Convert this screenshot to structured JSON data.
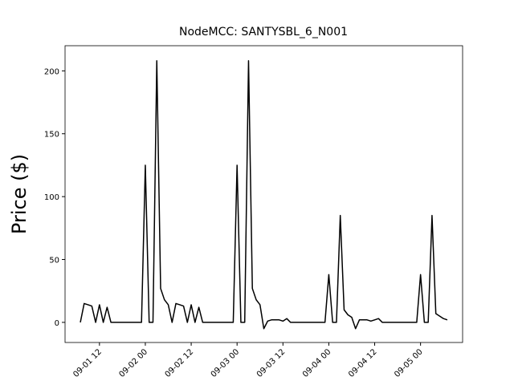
{
  "chart_data": {
    "type": "line",
    "title": "NodeMCC: SANTYSBL_6_N001",
    "y_label": "Price ($)",
    "x": [
      "09-01 07",
      "09-01 08",
      "09-01 09",
      "09-01 10",
      "09-01 11",
      "09-01 12",
      "09-01 13",
      "09-01 14",
      "09-01 15",
      "09-01 16",
      "09-01 17",
      "09-01 18",
      "09-01 19",
      "09-01 20",
      "09-01 21",
      "09-01 22",
      "09-01 23",
      "09-02 00",
      "09-02 01",
      "09-02 02",
      "09-02 03",
      "09-02 04",
      "09-02 05",
      "09-02 06",
      "09-02 07",
      "09-02 08",
      "09-02 09",
      "09-02 10",
      "09-02 11",
      "09-02 12",
      "09-02 13",
      "09-02 14",
      "09-02 15",
      "09-02 16",
      "09-02 17",
      "09-02 18",
      "09-02 19",
      "09-02 20",
      "09-02 21",
      "09-02 22",
      "09-02 23",
      "09-03 00",
      "09-03 01",
      "09-03 02",
      "09-03 03",
      "09-03 04",
      "09-03 05",
      "09-03 06",
      "09-03 07",
      "09-03 08",
      "09-03 09",
      "09-03 10",
      "09-03 11",
      "09-03 12",
      "09-03 13",
      "09-03 14",
      "09-03 15",
      "09-03 16",
      "09-03 17",
      "09-03 18",
      "09-03 19",
      "09-03 20",
      "09-03 21",
      "09-03 22",
      "09-03 23",
      "09-04 00",
      "09-04 01",
      "09-04 02",
      "09-04 03",
      "09-04 04",
      "09-04 05",
      "09-04 06",
      "09-04 07",
      "09-04 08",
      "09-04 09",
      "09-04 10",
      "09-04 11",
      "09-04 12",
      "09-04 13",
      "09-04 14",
      "09-04 15",
      "09-04 16",
      "09-04 17",
      "09-04 18",
      "09-04 19",
      "09-04 20",
      "09-04 21",
      "09-04 22",
      "09-04 23",
      "09-05 00",
      "09-05 01",
      "09-05 02",
      "09-05 03",
      "09-05 04",
      "09-05 05",
      "09-05 06",
      "09-05 07"
    ],
    "series": [
      {
        "color": "#000000",
        "values": [
          0,
          15,
          14,
          13,
          0,
          14,
          0,
          12,
          0,
          0,
          0,
          0,
          0,
          0,
          0,
          0,
          0,
          125,
          0,
          0,
          208,
          27,
          18,
          14,
          0,
          15,
          14,
          13,
          0,
          14,
          0,
          12,
          0,
          0,
          0,
          0,
          0,
          0,
          0,
          0,
          0,
          125,
          0,
          0,
          208,
          27,
          18,
          14,
          -5,
          1,
          2,
          2,
          2,
          1,
          3,
          0,
          0,
          0,
          0,
          0,
          0,
          0,
          0,
          0,
          0,
          38,
          0,
          0,
          85,
          10,
          6,
          4,
          -5,
          2,
          2,
          2,
          1,
          2,
          3,
          0,
          0,
          0,
          0,
          0,
          0,
          0,
          0,
          0,
          0,
          38,
          0,
          0,
          85,
          7,
          5,
          3,
          2
        ]
      }
    ],
    "xlim": [
      "09-01 03",
      "09-05 11"
    ],
    "xticks": [
      "09-01 12",
      "09-02 00",
      "09-02 12",
      "09-03 00",
      "09-03 12",
      "09-04 00",
      "09-04 12",
      "09-05 00"
    ],
    "ylim": [
      -16,
      220
    ],
    "yticks": [
      0,
      50,
      100,
      150,
      200
    ]
  }
}
